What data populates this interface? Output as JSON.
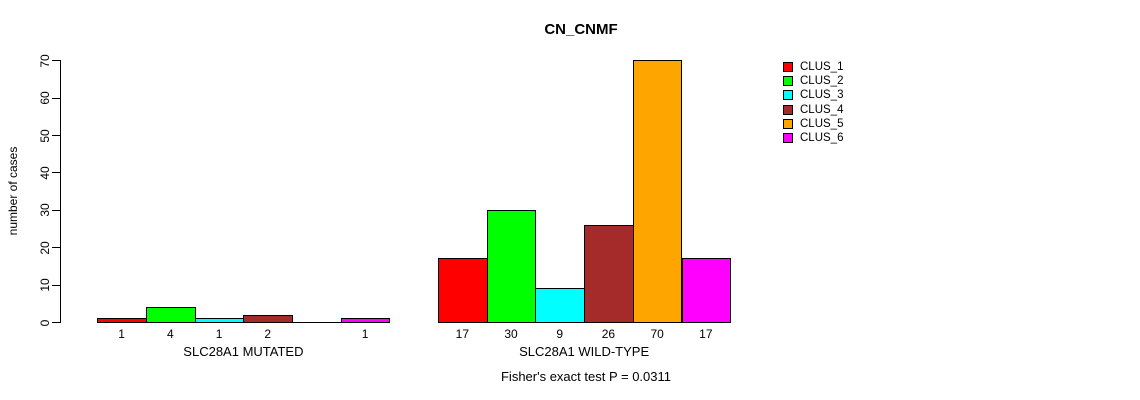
{
  "title": "CN_CNMF",
  "ylabel": "number of cases",
  "annotation": "Fisher's exact test P = 0.0311",
  "legend": [
    {
      "label": "CLUS_1",
      "color": "#FF0000"
    },
    {
      "label": "CLUS_2",
      "color": "#00FF00"
    },
    {
      "label": "CLUS_3",
      "color": "#00FFFF"
    },
    {
      "label": "CLUS_4",
      "color": "#A52A2A"
    },
    {
      "label": "CLUS_5",
      "color": "#FFA500"
    },
    {
      "label": "CLUS_6",
      "color": "#FF00FF"
    }
  ],
  "chart_data": {
    "type": "bar",
    "title": "CN_CNMF",
    "xlabel": "",
    "ylabel": "number of cases",
    "ylim": [
      0,
      70
    ],
    "yticks": [
      0,
      10,
      20,
      30,
      40,
      50,
      60,
      70
    ],
    "grid": false,
    "legend_position": "right-outside",
    "categories": [
      "CLUS_1",
      "CLUS_2",
      "CLUS_3",
      "CLUS_4",
      "CLUS_5",
      "CLUS_6"
    ],
    "series_colors": [
      "#FF0000",
      "#00FF00",
      "#00FFFF",
      "#A52A2A",
      "#FFA500",
      "#FF00FF"
    ],
    "groups": [
      {
        "label": "SLC28A1 MUTATED",
        "values": [
          1,
          4,
          1,
          2,
          0,
          1
        ],
        "bar_labels": [
          "1",
          "4",
          "1",
          "2",
          "",
          "1"
        ]
      },
      {
        "label": "SLC28A1 WILD-TYPE",
        "values": [
          17,
          30,
          9,
          26,
          70,
          17
        ],
        "bar_labels": [
          "17",
          "30",
          "9",
          "26",
          "70",
          "17"
        ]
      }
    ],
    "annotation": "Fisher's exact test P = 0.0311"
  }
}
